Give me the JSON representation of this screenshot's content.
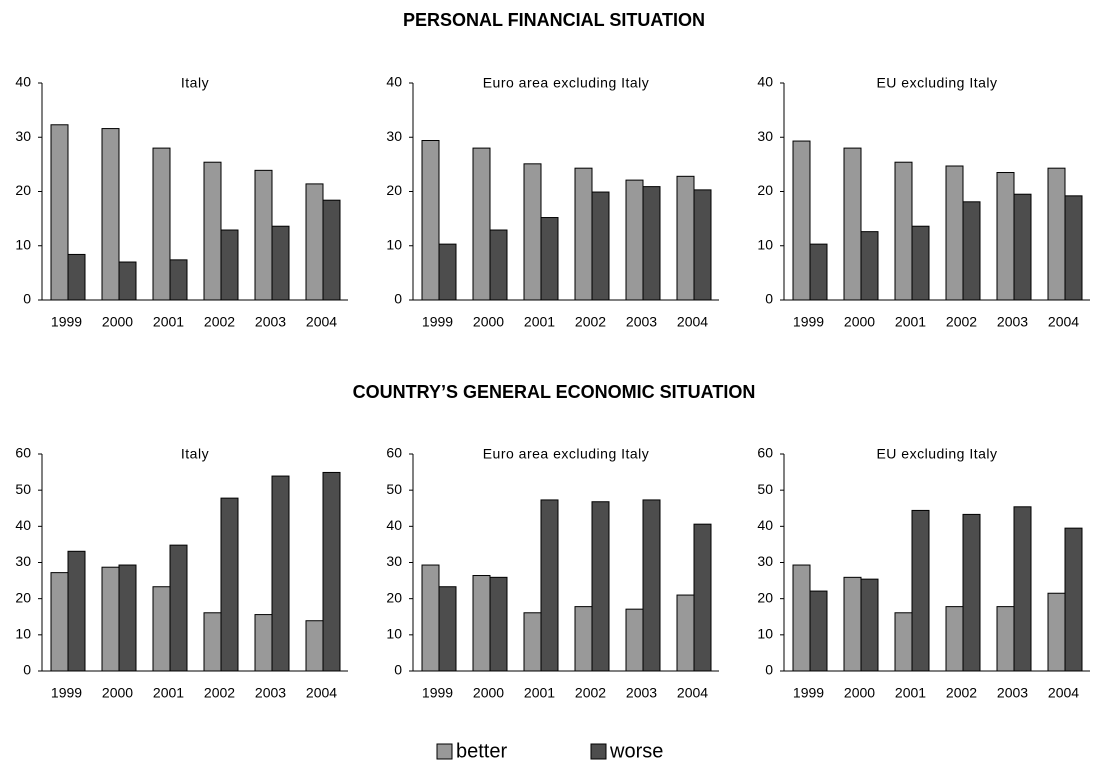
{
  "section_titles": [
    "PERSONAL FINANCIAL SITUATION",
    "COUNTRY’S GENERAL ECONOMIC SITUATION"
  ],
  "chart_data": [
    {
      "type": "bar",
      "title": "Italy",
      "categories": [
        "1999",
        "2000",
        "2001",
        "2002",
        "2003",
        "2004"
      ],
      "series": [
        {
          "name": "better",
          "color": "#999999",
          "values": [
            32.3,
            31.6,
            28,
            25.4,
            23.9,
            21.4
          ]
        },
        {
          "name": "worse",
          "color": "#4d4d4d",
          "values": [
            8.4,
            7,
            7.4,
            12.9,
            13.6,
            18.4
          ]
        }
      ],
      "ylim": [
        0,
        40
      ],
      "yticks": [
        0,
        10,
        20,
        30,
        40
      ]
    },
    {
      "type": "bar",
      "title": "Euro area excluding Italy",
      "categories": [
        "1999",
        "2000",
        "2001",
        "2002",
        "2003",
        "2004"
      ],
      "series": [
        {
          "name": "better",
          "color": "#999999",
          "values": [
            29.4,
            28,
            25.1,
            24.3,
            22.1,
            22.8
          ]
        },
        {
          "name": "worse",
          "color": "#4d4d4d",
          "values": [
            10.3,
            12.9,
            15.2,
            19.9,
            20.9,
            20.3
          ]
        }
      ],
      "ylim": [
        0,
        40
      ],
      "yticks": [
        0,
        10,
        20,
        30,
        40
      ]
    },
    {
      "type": "bar",
      "title": "EU excluding Italy",
      "categories": [
        "1999",
        "2000",
        "2001",
        "2002",
        "2003",
        "2004"
      ],
      "series": [
        {
          "name": "better",
          "color": "#999999",
          "values": [
            29.3,
            28,
            25.4,
            24.7,
            23.5,
            24.3
          ]
        },
        {
          "name": "worse",
          "color": "#4d4d4d",
          "values": [
            10.3,
            12.6,
            13.6,
            18.1,
            19.5,
            19.2
          ]
        }
      ],
      "ylim": [
        0,
        40
      ],
      "yticks": [
        0,
        10,
        20,
        30,
        40
      ]
    },
    {
      "type": "bar",
      "title": "Italy",
      "categories": [
        "1999",
        "2000",
        "2001",
        "2002",
        "2003",
        "2004"
      ],
      "series": [
        {
          "name": "better",
          "color": "#999999",
          "values": [
            27.2,
            28.7,
            23.3,
            16.1,
            15.6,
            13.9
          ]
        },
        {
          "name": "worse",
          "color": "#4d4d4d",
          "values": [
            33.1,
            29.3,
            34.8,
            47.8,
            53.9,
            54.9
          ]
        }
      ],
      "ylim": [
        0,
        60
      ],
      "yticks": [
        0,
        10,
        20,
        30,
        40,
        50,
        60
      ]
    },
    {
      "type": "bar",
      "title": "Euro area excluding Italy",
      "categories": [
        "1999",
        "2000",
        "2001",
        "2002",
        "2003",
        "2004"
      ],
      "series": [
        {
          "name": "better",
          "color": "#999999",
          "values": [
            29.3,
            26.4,
            16.1,
            17.8,
            17.1,
            21
          ]
        },
        {
          "name": "worse",
          "color": "#4d4d4d",
          "values": [
            23.3,
            25.9,
            47.3,
            46.8,
            47.3,
            40.6
          ]
        }
      ],
      "ylim": [
        0,
        60
      ],
      "yticks": [
        0,
        10,
        20,
        30,
        40,
        50,
        60
      ]
    },
    {
      "type": "bar",
      "title": "EU excluding Italy",
      "categories": [
        "1999",
        "2000",
        "2001",
        "2002",
        "2003",
        "2004"
      ],
      "series": [
        {
          "name": "better",
          "color": "#999999",
          "values": [
            29.3,
            25.9,
            16.1,
            17.8,
            17.8,
            21.5
          ]
        },
        {
          "name": "worse",
          "color": "#4d4d4d",
          "values": [
            22.1,
            25.4,
            44.4,
            43.3,
            45.4,
            39.5
          ]
        }
      ],
      "ylim": [
        0,
        60
      ],
      "yticks": [
        0,
        10,
        20,
        30,
        40,
        50,
        60
      ]
    }
  ]
}
